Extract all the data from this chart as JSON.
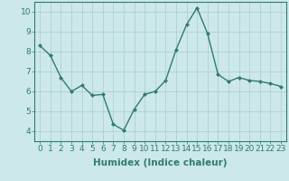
{
  "x": [
    0,
    1,
    2,
    3,
    4,
    5,
    6,
    7,
    8,
    9,
    10,
    11,
    12,
    13,
    14,
    15,
    16,
    17,
    18,
    19,
    20,
    21,
    22,
    23
  ],
  "y": [
    8.3,
    7.8,
    6.7,
    6.0,
    6.3,
    5.8,
    5.85,
    4.35,
    4.05,
    5.1,
    5.85,
    6.0,
    6.55,
    8.1,
    9.35,
    10.2,
    8.9,
    6.85,
    6.5,
    6.7,
    6.55,
    6.5,
    6.4,
    6.25
  ],
  "line_color": "#2e7d6e",
  "marker": "D",
  "marker_size": 2.0,
  "linewidth": 1.0,
  "xlabel": "Humidex (Indice chaleur)",
  "xlim": [
    -0.5,
    23.5
  ],
  "ylim": [
    3.5,
    10.5
  ],
  "yticks": [
    4,
    5,
    6,
    7,
    8,
    9,
    10
  ],
  "xticks": [
    0,
    1,
    2,
    3,
    4,
    5,
    6,
    7,
    8,
    9,
    10,
    11,
    12,
    13,
    14,
    15,
    16,
    17,
    18,
    19,
    20,
    21,
    22,
    23
  ],
  "bg_color": "#cce8e8",
  "grid_color": "#aacccc",
  "tick_label_fontsize": 6.5,
  "xlabel_fontsize": 7.5,
  "spine_color": "#2e7d6e"
}
